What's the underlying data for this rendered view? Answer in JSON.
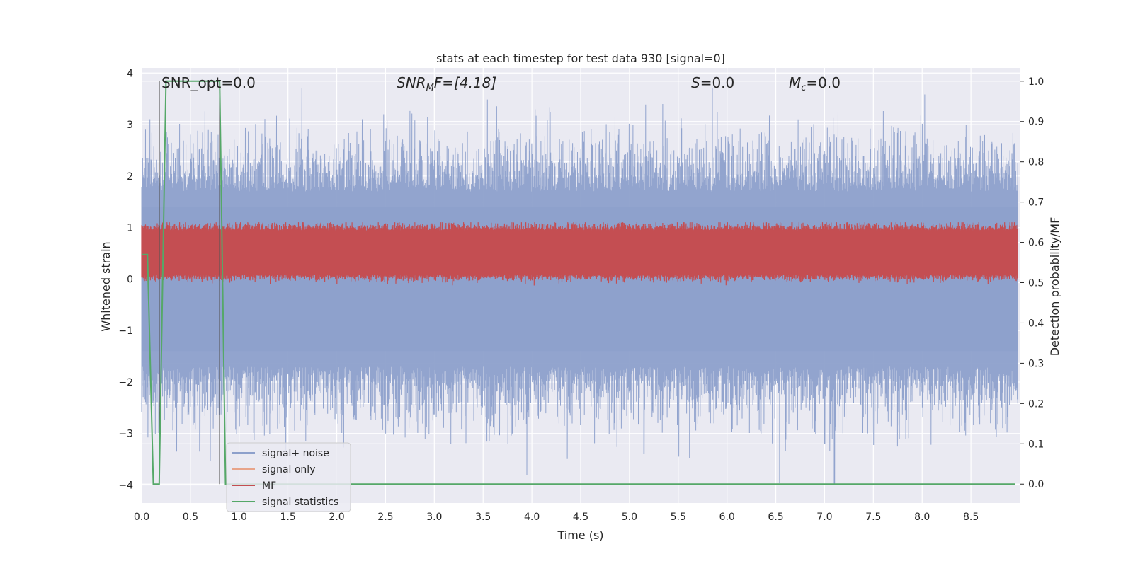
{
  "chart_data": {
    "type": "line",
    "title": "stats at each timestep for test data 930 [signal=0]",
    "xlabel": "Time (s)",
    "ylabel": "Whitened strain",
    "y2label": "Detection probability/MF",
    "xlim": [
      0.0,
      9.0
    ],
    "ylim": [
      -4.35,
      4.1
    ],
    "y2lim": [
      -0.047,
      1.033
    ],
    "x_ticks": [
      0.0,
      0.5,
      1.0,
      1.5,
      2.0,
      2.5,
      3.0,
      3.5,
      4.0,
      4.5,
      5.0,
      5.5,
      6.0,
      6.5,
      7.0,
      7.5,
      8.0,
      8.5
    ],
    "x_tick_labels": [
      "0.0",
      "0.5",
      "1.0",
      "1.5",
      "2.0",
      "2.5",
      "3.0",
      "3.5",
      "4.0",
      "4.5",
      "5.0",
      "5.5",
      "6.0",
      "6.5",
      "7.0",
      "7.5",
      "8.0",
      "8.5"
    ],
    "y_ticks": [
      -4,
      -3,
      -2,
      -1,
      0,
      1,
      2,
      3,
      4
    ],
    "y_tick_labels": [
      "−4",
      "−3",
      "−2",
      "−1",
      "0",
      "1",
      "2",
      "3",
      "4"
    ],
    "y2_ticks": [
      0.0,
      0.1,
      0.2,
      0.3,
      0.4,
      0.5,
      0.6,
      0.7,
      0.8,
      0.9,
      1.0
    ],
    "y2_tick_labels": [
      "0.0",
      "0.1",
      "0.2",
      "0.3",
      "0.4",
      "0.5",
      "0.6",
      "0.7",
      "0.8",
      "0.9",
      "1.0"
    ],
    "grid": true,
    "legend_position": "lower-left",
    "annotations": {
      "snr_opt": "SNR_opt=0.0",
      "snr_mf_label": "SNR",
      "snr_mf_sub": "M",
      "snr_mf_rest": "F=[4.18]",
      "s_label": "S",
      "s_value": "=0.0",
      "mc_label": "M",
      "mc_sub": "c",
      "mc_value": "=0.0"
    },
    "series": [
      {
        "name": "signal+ noise",
        "color": "#8da0cb",
        "axis": "left",
        "description_of_shape": "dense noise band",
        "envelope": {
          "typical_high": 1.7,
          "typical_low": -1.7,
          "max": 3.75,
          "min": -4.0
        },
        "peaks": [
          [
            0.04,
            2.9
          ],
          [
            2.48,
            3.2
          ],
          [
            5.85,
            3.7
          ],
          [
            8.45,
            3.0
          ],
          [
            8.9,
            2.5
          ],
          [
            4.62,
            2.6
          ]
        ],
        "troughs": [
          [
            2.5,
            -3.0
          ],
          [
            3.8,
            -3.0
          ],
          [
            5.15,
            -3.4
          ],
          [
            6.35,
            -3.0
          ],
          [
            7.1,
            -4.0
          ],
          [
            7.0,
            -3.2
          ],
          [
            8.7,
            -2.8
          ]
        ]
      },
      {
        "name": "signal only",
        "color": "#e8a48a",
        "axis": "left",
        "values_note": "zero everywhere"
      },
      {
        "name": "MF",
        "color": "#c44e52",
        "axis": "right",
        "envelope": {
          "low": 0.52,
          "high": 0.63,
          "max": 0.65
        }
      },
      {
        "name": "signal statistics",
        "color": "#55a868",
        "axis": "right",
        "points": [
          [
            0.0,
            0.57
          ],
          [
            0.06,
            0.57
          ],
          [
            0.12,
            0.0
          ],
          [
            0.18,
            0.0
          ],
          [
            0.25,
            1.0
          ],
          [
            0.8,
            1.0
          ],
          [
            0.86,
            0.0
          ],
          [
            8.95,
            0.0
          ]
        ]
      }
    ],
    "vertical_markers": [
      0.18,
      0.8
    ]
  }
}
